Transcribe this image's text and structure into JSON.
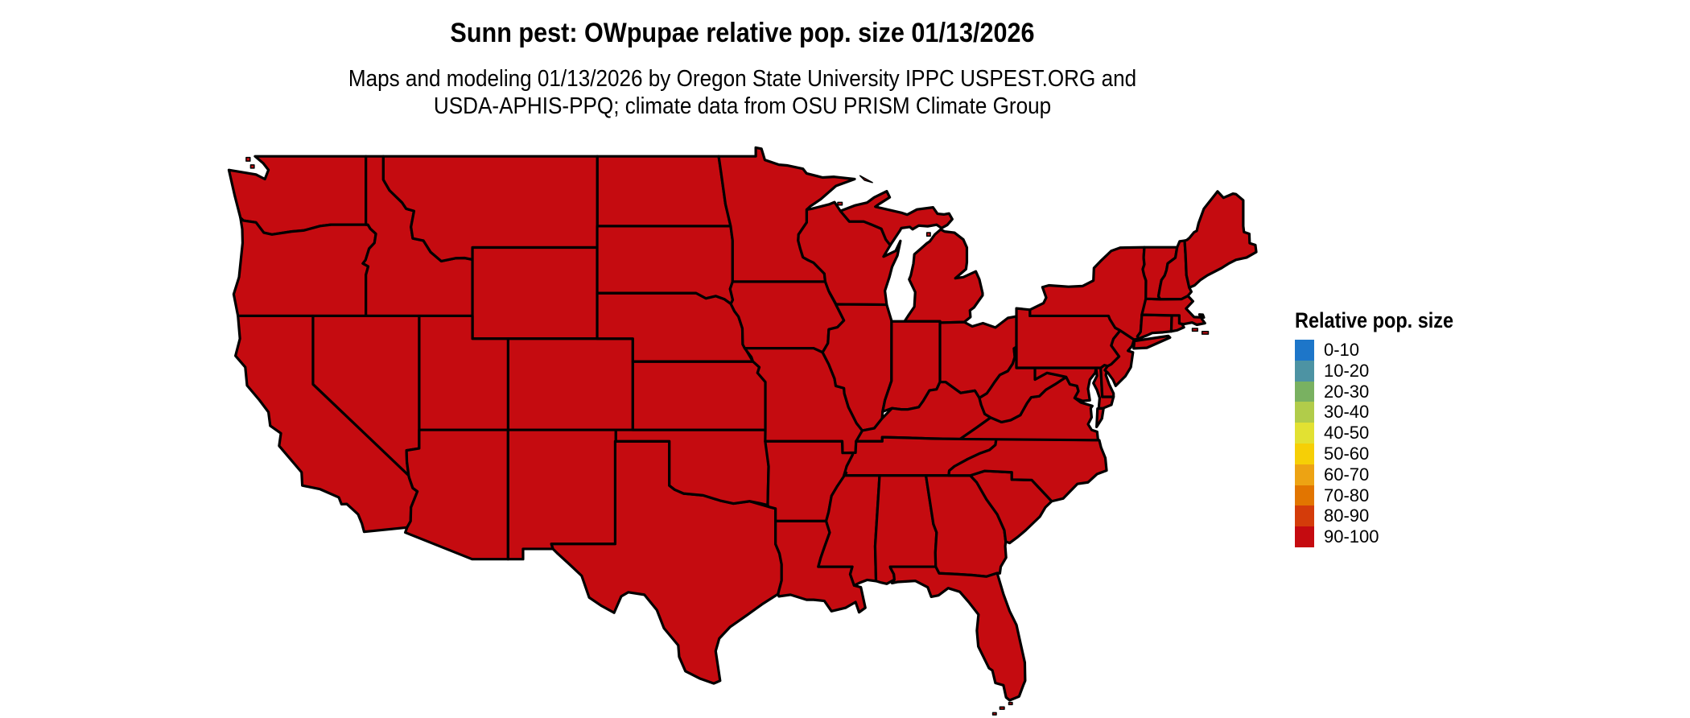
{
  "title": "Sunn pest: OWpupae relative pop. size 01/13/2026",
  "subtitle": {
    "line1": "Maps and modeling 01/13/2026 by Oregon State University IPPC USPEST.ORG and",
    "line2": "USDA-APHIS-PPQ; climate data from OSU PRISM Climate Group"
  },
  "legend": {
    "title": "Relative pop. size",
    "items": [
      {
        "label": "0-10",
        "color": "#1d76c9"
      },
      {
        "label": "10-20",
        "color": "#4d93a3"
      },
      {
        "label": "20-30",
        "color": "#79b161"
      },
      {
        "label": "30-40",
        "color": "#b1cc4a"
      },
      {
        "label": "40-50",
        "color": "#e2e132"
      },
      {
        "label": "50-60",
        "color": "#f6cf06"
      },
      {
        "label": "60-70",
        "color": "#eda313"
      },
      {
        "label": "70-80",
        "color": "#e27500"
      },
      {
        "label": "80-90",
        "color": "#d43c0a"
      },
      {
        "label": "90-100",
        "color": "#c50b10"
      }
    ]
  },
  "map": {
    "fill_category": "90-100",
    "fill_color": "#c50b10",
    "border_color": "#000000",
    "background_color": "#ffffff"
  }
}
